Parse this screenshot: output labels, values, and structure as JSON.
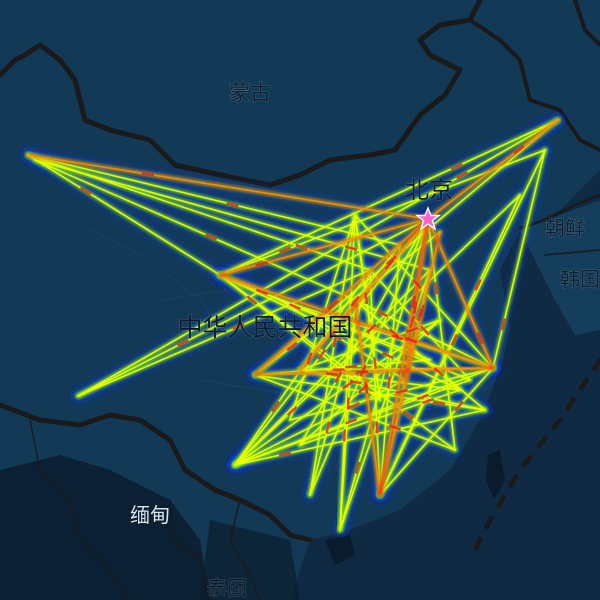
{
  "map": {
    "labels": {
      "mongolia": "蒙古",
      "beijing": "北京",
      "china": "中华人民共和国",
      "dprk": "朝鲜",
      "korea": "韩国",
      "myanmar": "缅甸",
      "thailand": "泰国"
    },
    "colors": {
      "ocean": "#0f2a42",
      "land": "#123a57",
      "land_dark": "#0a1c2c",
      "border": "#1a1a1a",
      "route_glow": "#1f3fff",
      "route_mid": "#7cf000",
      "route_core": "#f2ff00",
      "route_hot": "#e8201a",
      "star": "#ff66cc"
    },
    "hub": {
      "name_key": "beijing",
      "icon": "star-icon"
    },
    "heavy_routes": [
      [
        "a1",
        "b1"
      ],
      [
        "a2",
        "b2"
      ],
      [
        "a3",
        "b3"
      ]
    ]
  }
}
